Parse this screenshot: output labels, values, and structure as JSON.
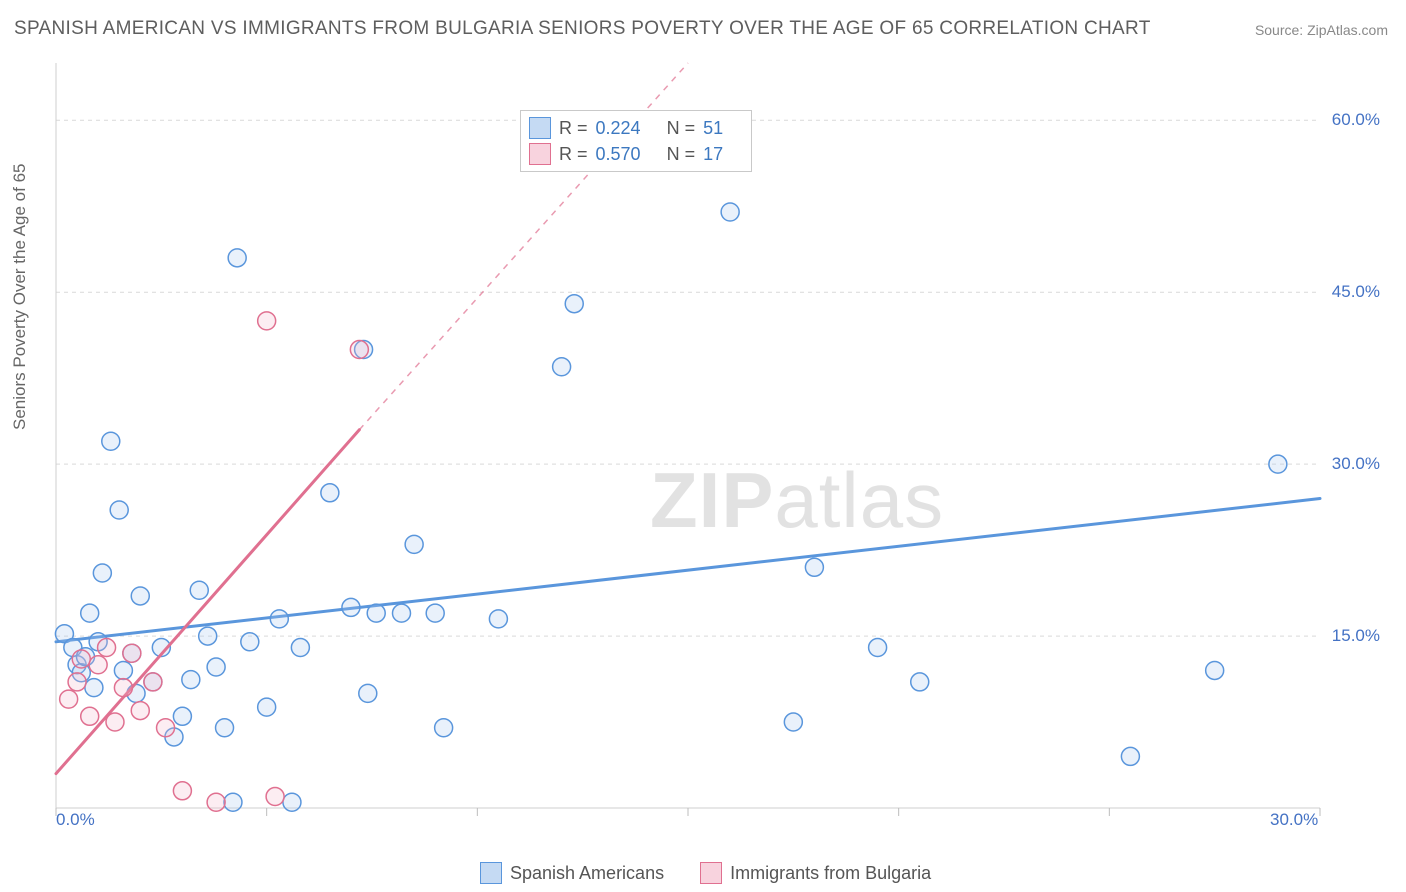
{
  "title": "SPANISH AMERICAN VS IMMIGRANTS FROM BULGARIA SENIORS POVERTY OVER THE AGE OF 65 CORRELATION CHART",
  "source": "Source: ZipAtlas.com",
  "watermark_left": "ZIP",
  "watermark_right": "atlas",
  "chart": {
    "type": "scatter",
    "y_label": "Seniors Poverty Over the Age of 65",
    "xlim": [
      0,
      30
    ],
    "ylim": [
      0,
      65
    ],
    "x_ticks": [
      0,
      5,
      10,
      15,
      20,
      25,
      30
    ],
    "x_tick_labels_visible": {
      "0": "0.0%",
      "30": "30.0%"
    },
    "y_gridlines": [
      15,
      30,
      45,
      60
    ],
    "y_tick_labels": {
      "15": "15.0%",
      "30": "30.0%",
      "45": "45.0%",
      "60": "60.0%"
    },
    "grid_color": "#d9d9d9",
    "axis_color": "#cfcfcf",
    "background_color": "#ffffff",
    "marker_radius": 9,
    "marker_stroke_width": 1.5,
    "marker_fill_opacity": 0.25,
    "line_width": 3,
    "dash_width": 1.5,
    "series": [
      {
        "name": "Spanish Americans",
        "color_stroke": "#5a96dc",
        "color_fill": "#a9c9ef",
        "regression": {
          "R": 0.224,
          "N": 51,
          "x1": 0,
          "y1": 14.5,
          "x2": 30,
          "y2": 27.0
        },
        "extrapolation": {
          "x1": 0,
          "y1": 14.5,
          "x2": 30,
          "y2": 27.0
        },
        "points": [
          [
            0.2,
            15.2
          ],
          [
            0.4,
            14.0
          ],
          [
            0.5,
            12.5
          ],
          [
            0.6,
            11.8
          ],
          [
            0.7,
            13.2
          ],
          [
            0.8,
            17.0
          ],
          [
            0.9,
            10.5
          ],
          [
            1.0,
            14.5
          ],
          [
            1.1,
            20.5
          ],
          [
            1.3,
            32.0
          ],
          [
            1.5,
            26.0
          ],
          [
            1.6,
            12.0
          ],
          [
            1.8,
            13.5
          ],
          [
            1.9,
            10.0
          ],
          [
            2.0,
            18.5
          ],
          [
            2.3,
            11.0
          ],
          [
            2.5,
            14.0
          ],
          [
            2.8,
            6.2
          ],
          [
            3.0,
            8.0
          ],
          [
            3.2,
            11.2
          ],
          [
            3.4,
            19.0
          ],
          [
            3.6,
            15.0
          ],
          [
            3.8,
            12.3
          ],
          [
            4.0,
            7.0
          ],
          [
            4.2,
            0.5
          ],
          [
            4.3,
            48.0
          ],
          [
            4.6,
            14.5
          ],
          [
            5.0,
            8.8
          ],
          [
            5.3,
            16.5
          ],
          [
            5.6,
            0.5
          ],
          [
            5.8,
            14.0
          ],
          [
            6.5,
            27.5
          ],
          [
            7.0,
            17.5
          ],
          [
            7.3,
            40.0
          ],
          [
            7.4,
            10.0
          ],
          [
            7.6,
            17.0
          ],
          [
            8.2,
            17.0
          ],
          [
            8.5,
            23.0
          ],
          [
            9.0,
            17.0
          ],
          [
            9.2,
            7.0
          ],
          [
            10.5,
            16.5
          ],
          [
            12.0,
            38.5
          ],
          [
            12.3,
            44.0
          ],
          [
            16.0,
            52.0
          ],
          [
            17.5,
            7.5
          ],
          [
            18.0,
            21.0
          ],
          [
            19.5,
            14.0
          ],
          [
            20.5,
            11.0
          ],
          [
            25.5,
            4.5
          ],
          [
            27.5,
            12.0
          ],
          [
            29.0,
            30.0
          ]
        ]
      },
      {
        "name": "Immigrants from Bulgaria",
        "color_stroke": "#e07090",
        "color_fill": "#f4b9cb",
        "regression": {
          "R": 0.57,
          "N": 17,
          "x1": 0,
          "y1": 3.0,
          "x2": 7.2,
          "y2": 33.0
        },
        "extrapolation": {
          "x1": 7.2,
          "y1": 33.0,
          "x2": 15.0,
          "y2": 65.0
        },
        "points": [
          [
            0.3,
            9.5
          ],
          [
            0.5,
            11.0
          ],
          [
            0.6,
            13.0
          ],
          [
            0.8,
            8.0
          ],
          [
            1.0,
            12.5
          ],
          [
            1.2,
            14.0
          ],
          [
            1.4,
            7.5
          ],
          [
            1.6,
            10.5
          ],
          [
            1.8,
            13.5
          ],
          [
            2.0,
            8.5
          ],
          [
            2.3,
            11.0
          ],
          [
            2.6,
            7.0
          ],
          [
            3.0,
            1.5
          ],
          [
            3.8,
            0.5
          ],
          [
            5.0,
            42.5
          ],
          [
            5.2,
            1.0
          ],
          [
            7.2,
            40.0
          ]
        ]
      }
    ]
  },
  "legend_top": [
    {
      "swatch": "blue",
      "r": "0.224",
      "n": "51"
    },
    {
      "swatch": "pink",
      "r": "0.570",
      "n": "17"
    }
  ],
  "legend_bottom": [
    {
      "swatch": "blue",
      "label": "Spanish Americans"
    },
    {
      "swatch": "pink",
      "label": "Immigrants from Bulgaria"
    }
  ],
  "stat_labels": {
    "r": "R =",
    "n": "N ="
  }
}
